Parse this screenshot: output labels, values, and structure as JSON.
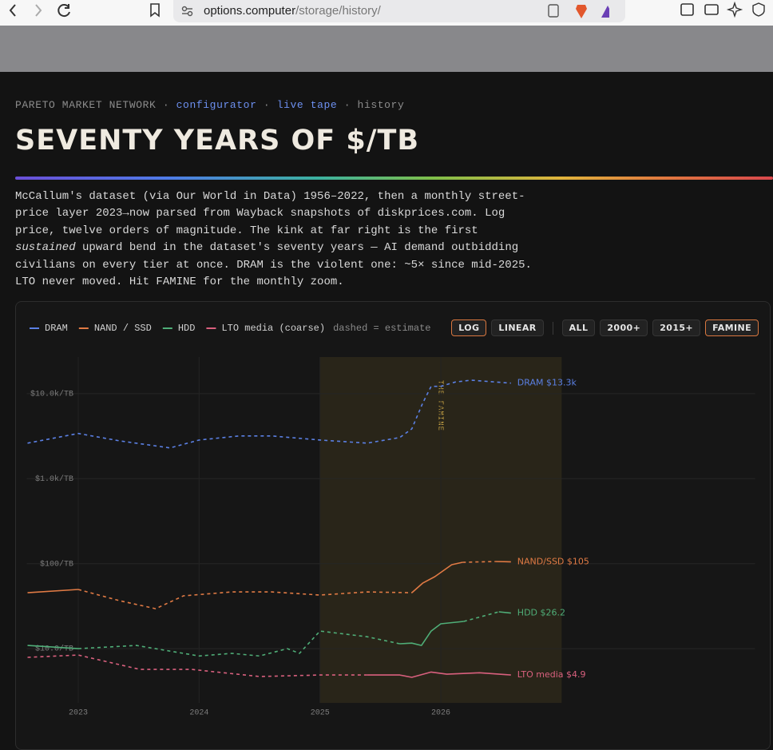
{
  "browser": {
    "url_host": "options.computer",
    "url_path": "/storage/history/"
  },
  "header": {
    "breadcrumb": [
      {
        "text": "PARETO MARKET NETWORK"
      },
      {
        "text": "configurator",
        "link": true
      },
      {
        "text": "live tape",
        "link": true
      },
      {
        "text": "history"
      }
    ],
    "separator": "·",
    "title": "SEVENTY YEARS OF $/TB",
    "paragraph": [
      [
        {
          "text": "McCallum's dataset (via Our World in Data) 1956–2022, then a monthly street-"
        }
      ],
      [
        {
          "text": "price layer 2023→now parsed from Wayback snapshots of diskprices.com. Log"
        }
      ],
      [
        {
          "text": "price, twelve orders of magnitude. The kink at far right is the first"
        }
      ],
      [
        {
          "text": "sustained",
          "italic": true
        },
        {
          "text": " upward bend in the dataset's seventy years — AI demand outbidding"
        }
      ],
      [
        {
          "text": "civilians on every tier at once. DRAM is the violent one: ~5× since mid-2025."
        }
      ],
      [
        {
          "text": "LTO never moved. Hit FAMINE for the monthly zoom."
        }
      ]
    ]
  },
  "chart_data": {
    "type": "line",
    "yscale": "log",
    "grid": true,
    "xlim": [
      2022.6,
      2028.6
    ],
    "xticks": [
      2023,
      2024,
      2025,
      2026
    ],
    "ylim": [
      2.3,
      27000
    ],
    "yticks": [
      {
        "value": 10,
        "label": "$10.0/TB"
      },
      {
        "value": 100,
        "label": "$100/TB"
      },
      {
        "value": 1000,
        "label": "$1.0k/TB"
      },
      {
        "value": 10000,
        "label": "$10.0k/TB"
      }
    ],
    "legend_note": "dashed = estimate",
    "controls": {
      "scale": [
        {
          "label": "LOG",
          "active": true
        },
        {
          "label": "LINEAR"
        }
      ],
      "range": [
        {
          "label": "ALL"
        },
        {
          "label": "2000+"
        },
        {
          "label": "2015+"
        },
        {
          "label": "FAMINE",
          "active": true
        }
      ]
    },
    "annotation": {
      "text": "THE FAMINE",
      "range": [
        2025,
        2027
      ]
    },
    "series": [
      {
        "name": "DRAM",
        "color": "#5b80e4",
        "end_label": "DRAM $13.3k",
        "x": [
          2022.58,
          2023.0,
          2023.34,
          2023.76,
          2024.0,
          2024.33,
          2024.6,
          2025.0,
          2025.39,
          2025.66,
          2025.76,
          2025.85,
          2025.92,
          2026.0,
          2026.12,
          2026.25,
          2026.58
        ],
        "values": [
          2620,
          3400,
          2790,
          2300,
          2850,
          3180,
          3180,
          2850,
          2620,
          3050,
          3860,
          7730,
          12200,
          12200,
          13700,
          14400,
          13300
        ],
        "estimated": [
          true,
          true,
          true,
          true,
          true,
          true,
          true,
          true,
          true,
          true,
          true,
          true,
          true,
          true,
          true,
          true,
          true
        ]
      },
      {
        "name": "NAND / SSD",
        "color": "#e07a44",
        "end_label": "NAND/SSD $105",
        "x": [
          2022.58,
          2023.0,
          2023.34,
          2023.64,
          2023.87,
          2024.27,
          2024.6,
          2025.0,
          2025.39,
          2025.76,
          2025.85,
          2025.95,
          2026.09,
          2026.18,
          2026.45,
          2026.58
        ],
        "values": [
          45.5,
          49.7,
          36.7,
          29.5,
          41.8,
          46.5,
          46.5,
          42.7,
          46.5,
          45.5,
          59,
          70.3,
          97.2,
          103.8,
          106,
          105
        ],
        "estimated": [
          false,
          false,
          true,
          true,
          true,
          true,
          true,
          true,
          true,
          true,
          false,
          false,
          false,
          false,
          true,
          false
        ]
      },
      {
        "name": "HDD",
        "color": "#4fae78",
        "end_label": "HDD $26.2",
        "x": [
          2022.58,
          2023.0,
          2023.48,
          2024.0,
          2024.27,
          2024.5,
          2024.73,
          2024.83,
          2025.0,
          2025.39,
          2025.66,
          2025.76,
          2025.84,
          2025.92,
          2026.0,
          2026.19,
          2026.48,
          2026.58
        ],
        "values": [
          10.9,
          10,
          10.9,
          8.2,
          8.8,
          8.2,
          10,
          8.8,
          16.1,
          13.8,
          11.4,
          11.6,
          10.9,
          16.1,
          19.6,
          20.9,
          27.1,
          26.2
        ],
        "estimated": [
          false,
          false,
          true,
          true,
          true,
          true,
          true,
          true,
          true,
          true,
          true,
          false,
          false,
          false,
          false,
          false,
          true,
          false
        ]
      },
      {
        "name": "LTO media (coarse)",
        "color": "#d9607e",
        "end_label": "LTO media $4.9",
        "x": [
          2022.58,
          2023.0,
          2023.51,
          2023.94,
          2024.5,
          2025.0,
          2025.39,
          2025.66,
          2025.76,
          2025.92,
          2026.05,
          2026.32,
          2026.58
        ],
        "values": [
          7.9,
          8.4,
          5.7,
          5.7,
          4.7,
          4.9,
          4.9,
          4.9,
          4.6,
          5.3,
          5.0,
          5.2,
          4.9
        ],
        "estimated": [
          true,
          true,
          true,
          true,
          true,
          true,
          true,
          false,
          false,
          false,
          false,
          false,
          false
        ]
      }
    ]
  }
}
